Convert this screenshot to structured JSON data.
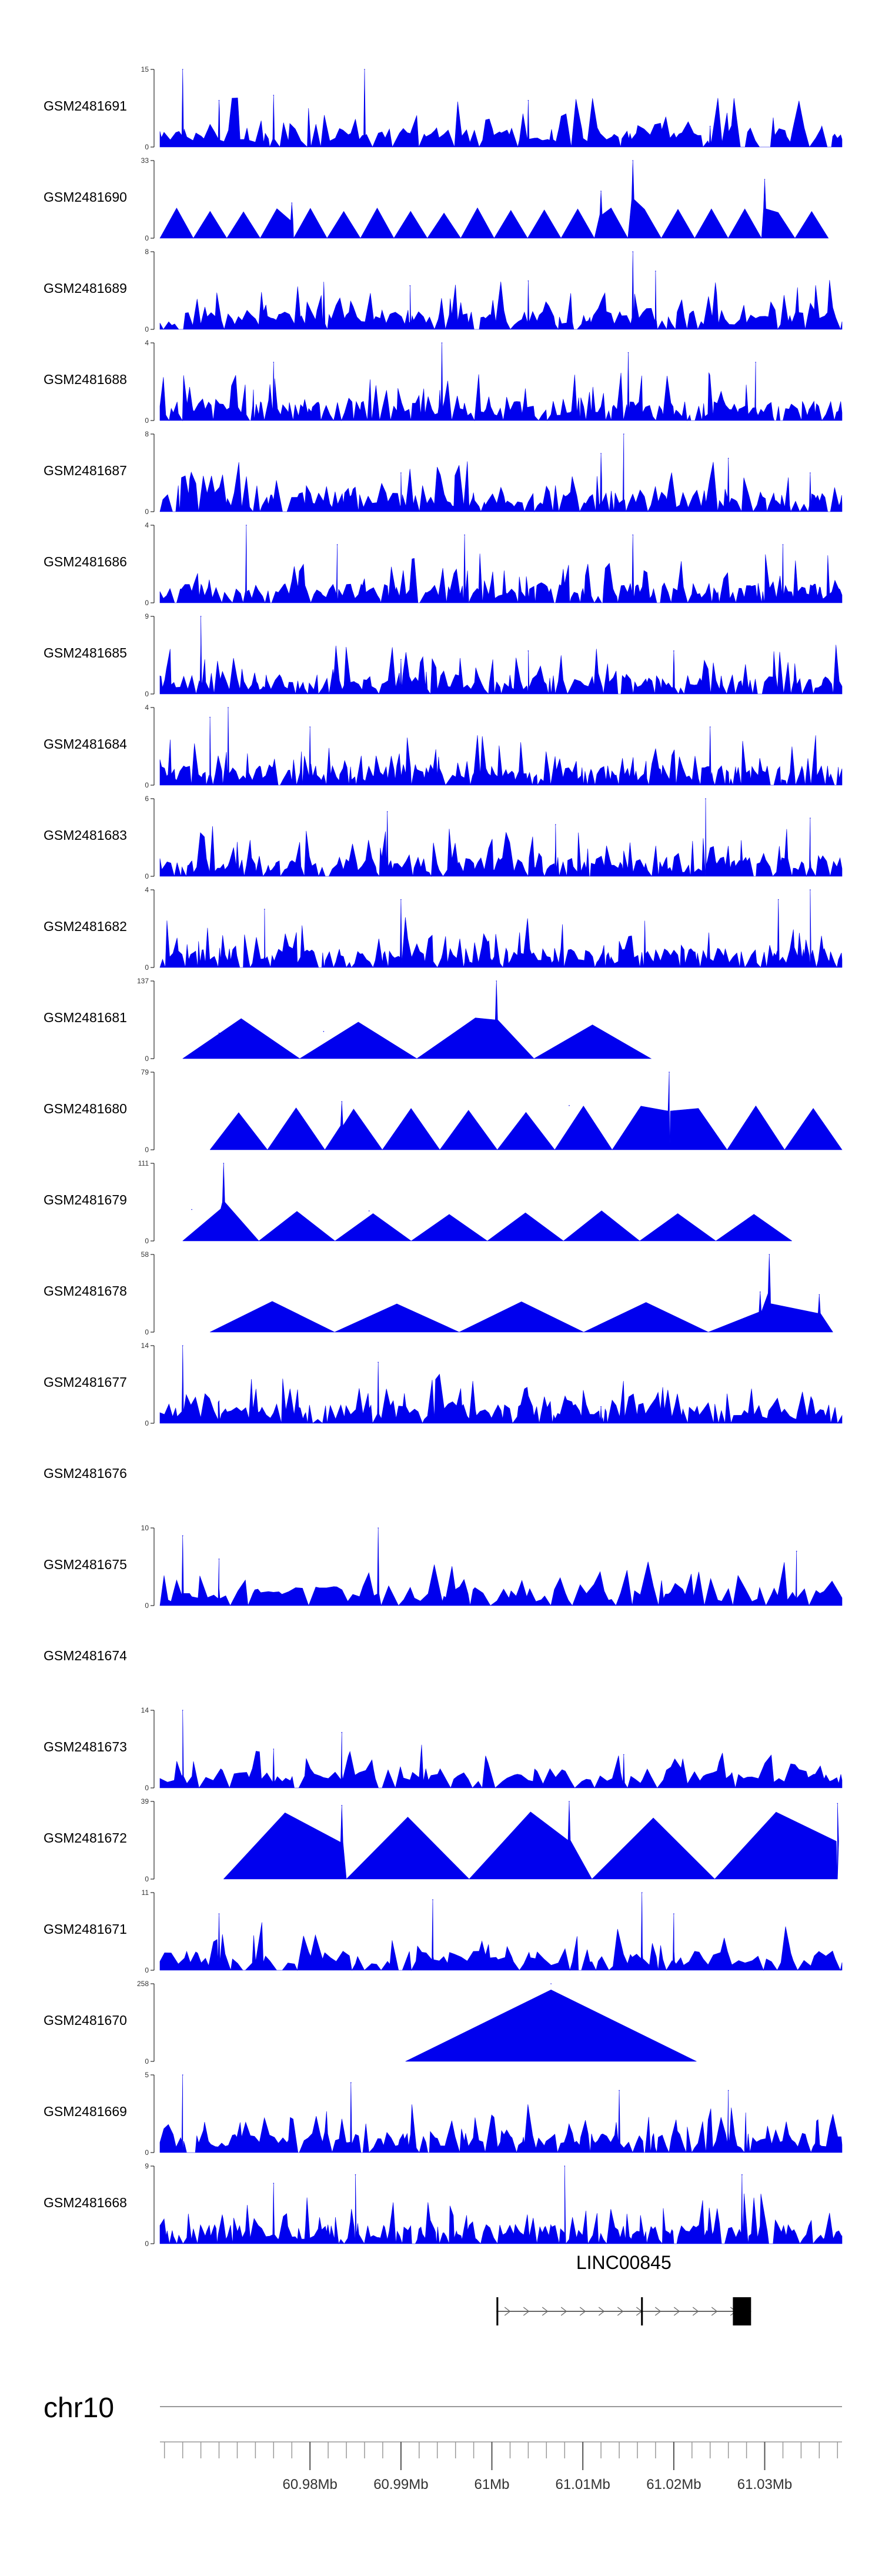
{
  "chart_data": {
    "type": "area",
    "title": "",
    "xlabel": "",
    "ylabel": "",
    "chromosome": "chr10",
    "x_range_mb": [
      60.9635,
      61.0385
    ],
    "x_ticks_mb": [
      60.98,
      60.99,
      61.0,
      61.01,
      61.02,
      61.03
    ],
    "x_tick_labels": [
      "60.98Mb",
      "60.99Mb",
      "61Mb",
      "61.01Mb",
      "61.02Mb",
      "61.03Mb"
    ],
    "minor_tick_step_mb": 0.002,
    "gene": {
      "name": "LINC00845",
      "start_mb": 61.0005,
      "end_mb": 61.0285,
      "exons": [
        [
          61.0005,
          61.0007
        ],
        [
          61.0164,
          61.0166
        ],
        [
          61.0265,
          61.0285
        ]
      ],
      "color": "#000000"
    },
    "tracks": [
      {
        "name": "GSM2481691",
        "ymax": 15,
        "style": "dense",
        "density": 1.0,
        "peaks": [
          [
            60.966,
            15
          ],
          [
            60.986,
            15
          ],
          [
            60.97,
            9
          ],
          [
            60.976,
            10
          ],
          [
            61.004,
            9
          ],
          [
            61.024,
            4
          ]
        ]
      },
      {
        "name": "GSM2481690",
        "ymax": 33,
        "style": "triangles",
        "start": 60.9635,
        "end": 61.037,
        "n": 20,
        "base": 0.38,
        "peaks": [
          [
            61.0155,
            33
          ],
          [
            61.03,
            25
          ],
          [
            61.012,
            20
          ],
          [
            60.978,
            15
          ]
        ]
      },
      {
        "name": "GSM2481689",
        "ymax": 8,
        "style": "dense",
        "density": 1.2,
        "peaks": [
          [
            61.0155,
            8
          ],
          [
            61.018,
            6
          ],
          [
            61.004,
            5
          ],
          [
            60.991,
            4.5
          ]
        ]
      },
      {
        "name": "GSM2481688",
        "ymax": 4,
        "style": "dense",
        "density": 1.5,
        "peaks": [
          [
            60.9945,
            4
          ],
          [
            61.015,
            3.5
          ],
          [
            61.029,
            3
          ],
          [
            60.976,
            3
          ]
        ]
      },
      {
        "name": "GSM2481687",
        "ymax": 8,
        "style": "dense",
        "density": 1.3,
        "peaks": [
          [
            61.0145,
            8
          ],
          [
            61.012,
            6
          ],
          [
            61.026,
            5.5
          ],
          [
            61.035,
            4
          ],
          [
            60.99,
            4
          ]
        ]
      },
      {
        "name": "GSM2481686",
        "ymax": 4,
        "style": "dense",
        "density": 1.4,
        "peaks": [
          [
            60.973,
            4
          ],
          [
            61.0155,
            3.5
          ],
          [
            60.997,
            3.5
          ],
          [
            61.032,
            3
          ],
          [
            60.983,
            3
          ]
        ]
      },
      {
        "name": "GSM2481685",
        "ymax": 9,
        "style": "dense",
        "density": 1.4,
        "peaks": [
          [
            60.968,
            9
          ],
          [
            61.02,
            5
          ],
          [
            61.004,
            5
          ],
          [
            60.99,
            4
          ]
        ]
      },
      {
        "name": "GSM2481684",
        "ymax": 4,
        "style": "dense",
        "density": 1.6,
        "peaks": [
          [
            60.971,
            4
          ],
          [
            60.969,
            3.5
          ],
          [
            61.024,
            3
          ],
          [
            60.98,
            3
          ]
        ]
      },
      {
        "name": "GSM2481683",
        "ymax": 6,
        "style": "dense",
        "density": 1.5,
        "peaks": [
          [
            61.0235,
            6
          ],
          [
            60.9885,
            5
          ],
          [
            61.035,
            4.5
          ],
          [
            61.007,
            4
          ]
        ]
      },
      {
        "name": "GSM2481682",
        "ymax": 4,
        "style": "dense",
        "density": 1.5,
        "peaks": [
          [
            61.035,
            4
          ],
          [
            61.0315,
            3.5
          ],
          [
            60.99,
            3.5
          ],
          [
            60.975,
            3
          ]
        ]
      },
      {
        "name": "GSM2481681",
        "ymax": 137,
        "style": "triangles",
        "start": 60.966,
        "end": 61.0175,
        "n": 4,
        "base": 0.5,
        "peaks": [
          [
            61.0005,
            137
          ],
          [
            60.9815,
            48
          ],
          [
            60.97,
            45
          ]
        ]
      },
      {
        "name": "GSM2481680",
        "ymax": 79,
        "style": "triangles",
        "start": 60.969,
        "end": 61.0385,
        "n": 11,
        "base": 0.55,
        "peaks": [
          [
            61.0195,
            79
          ],
          [
            60.9835,
            49
          ],
          [
            61.0085,
            45
          ]
        ]
      },
      {
        "name": "GSM2481679",
        "ymax": 111,
        "style": "triangles",
        "start": 60.966,
        "end": 61.033,
        "n": 8,
        "base": 0.4,
        "peaks": [
          [
            60.9705,
            111
          ],
          [
            60.967,
            45
          ],
          [
            60.9865,
            43
          ]
        ]
      },
      {
        "name": "GSM2481678",
        "ymax": 58,
        "style": "triangles",
        "start": 60.969,
        "end": 61.0375,
        "n": 5,
        "base": 0.4,
        "peaks": [
          [
            61.0305,
            58
          ],
          [
            61.0295,
            30
          ],
          [
            61.036,
            28
          ]
        ]
      },
      {
        "name": "GSM2481677",
        "ymax": 14,
        "style": "dense",
        "density": 1.2,
        "peaks": [
          [
            60.966,
            14
          ],
          [
            60.9875,
            11
          ],
          [
            60.97,
            4
          ],
          [
            61.012,
            3
          ]
        ]
      },
      {
        "name": "GSM2481676",
        "style": "empty"
      },
      {
        "name": "GSM2481675",
        "ymax": 10,
        "style": "dense",
        "density": 0.8,
        "peaks": [
          [
            60.9875,
            10
          ],
          [
            60.966,
            9
          ],
          [
            61.0335,
            7
          ],
          [
            60.97,
            6
          ]
        ]
      },
      {
        "name": "GSM2481674",
        "style": "empty"
      },
      {
        "name": "GSM2481673",
        "ymax": 14,
        "style": "dense",
        "density": 0.85,
        "peaks": [
          [
            60.966,
            14
          ],
          [
            60.9835,
            10
          ],
          [
            60.976,
            7
          ],
          [
            61.0145,
            6
          ]
        ]
      },
      {
        "name": "GSM2481672",
        "ymax": 39,
        "style": "triangles",
        "start": 60.9705,
        "end": 61.038,
        "n": 5,
        "base": 0.85,
        "peaks": [
          [
            61.0085,
            39
          ],
          [
            61.038,
            38
          ],
          [
            60.9835,
            37
          ]
        ]
      },
      {
        "name": "GSM2481671",
        "ymax": 11,
        "style": "dense",
        "density": 0.9,
        "peaks": [
          [
            61.0165,
            11
          ],
          [
            60.9935,
            10
          ],
          [
            61.02,
            8
          ],
          [
            60.97,
            8
          ]
        ]
      },
      {
        "name": "GSM2481670",
        "ymax": 258,
        "style": "triangles",
        "start": 60.9905,
        "end": 61.0225,
        "n": 1,
        "base": 1.0,
        "peaks": [
          [
            61.0065,
            258
          ]
        ]
      },
      {
        "name": "GSM2481669",
        "ymax": 5,
        "style": "dense",
        "density": 1.3,
        "peaks": [
          [
            60.966,
            5
          ],
          [
            60.9845,
            4.5
          ],
          [
            61.014,
            4
          ],
          [
            61.026,
            4
          ]
        ]
      },
      {
        "name": "GSM2481668",
        "ymax": 9,
        "style": "dense",
        "density": 1.5,
        "peaks": [
          [
            61.008,
            9
          ],
          [
            60.985,
            8
          ],
          [
            61.0275,
            8
          ],
          [
            60.976,
            7
          ]
        ]
      }
    ]
  },
  "colors": {
    "signal": "#0000ee",
    "axis": "#000000",
    "chromosome_line": "#999999",
    "label_text": "#000000",
    "tick_text": "#333333"
  }
}
